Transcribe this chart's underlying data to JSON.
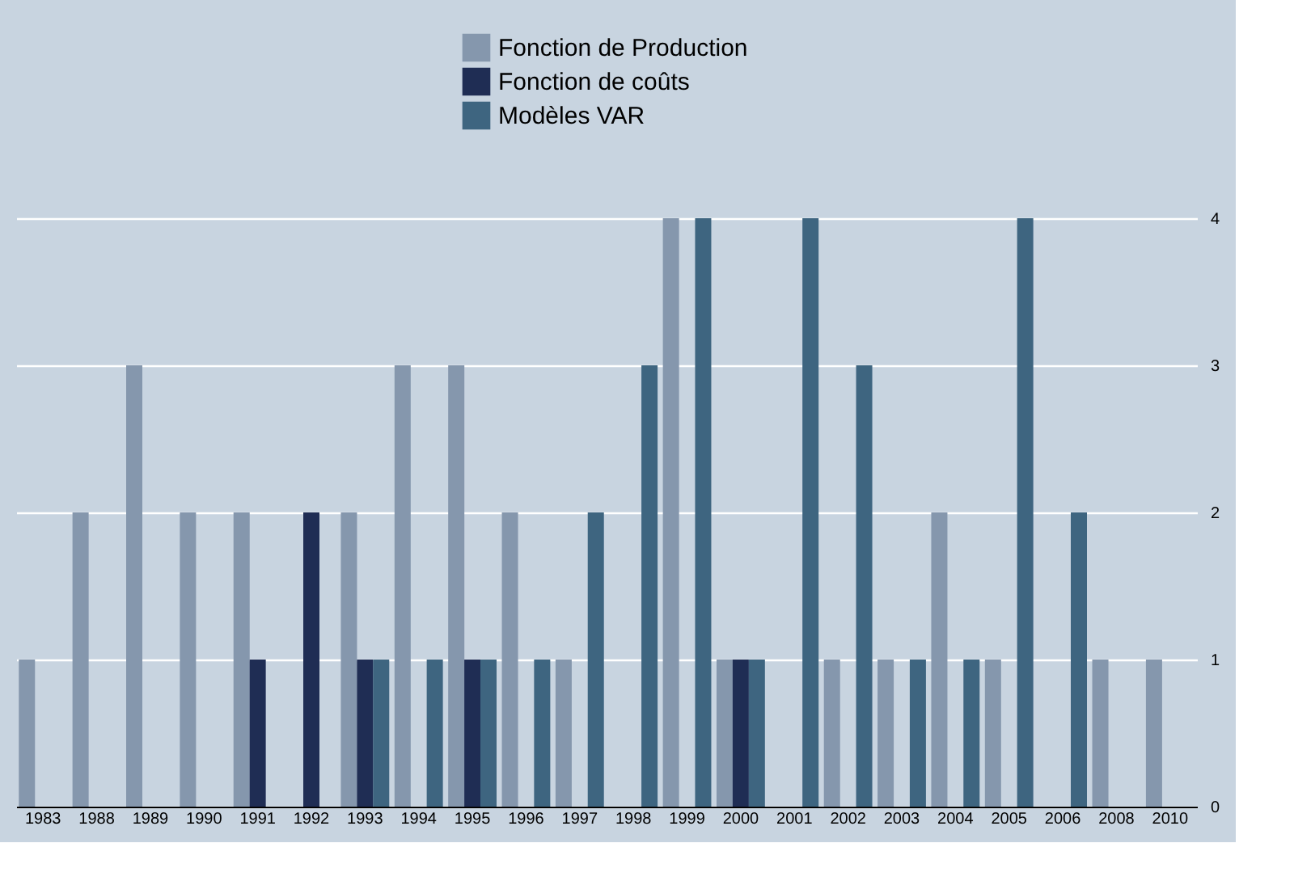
{
  "chart_data": {
    "type": "bar",
    "categories": [
      "1983",
      "1988",
      "1989",
      "1990",
      "1991",
      "1992",
      "1993",
      "1994",
      "1995",
      "1996",
      "1997",
      "1998",
      "1999",
      "2000",
      "2001",
      "2002",
      "2003",
      "2004",
      "2005",
      "2006",
      "2008",
      "2010"
    ],
    "series": [
      {
        "name": "Fonction de Production",
        "color": "#8597ad",
        "values": [
          1,
          2,
          3,
          2,
          2,
          null,
          2,
          3,
          3,
          2,
          1,
          null,
          4,
          1,
          null,
          1,
          1,
          2,
          1,
          null,
          1,
          1
        ]
      },
      {
        "name": "Fonction de coûts",
        "color": "#1f2d54",
        "values": [
          null,
          null,
          null,
          null,
          1,
          2,
          1,
          null,
          1,
          null,
          null,
          null,
          null,
          1,
          null,
          null,
          null,
          null,
          null,
          null,
          null,
          null
        ]
      },
      {
        "name": "Modèles VAR",
        "color": "#3e6580",
        "values": [
          null,
          null,
          null,
          null,
          null,
          null,
          1,
          1,
          1,
          1,
          2,
          3,
          4,
          1,
          4,
          3,
          1,
          1,
          4,
          2,
          null,
          null
        ]
      }
    ],
    "ylim": [
      0,
      4
    ],
    "yticks": [
      0,
      1,
      2,
      3,
      4
    ],
    "grid": "y",
    "legend": "top"
  }
}
